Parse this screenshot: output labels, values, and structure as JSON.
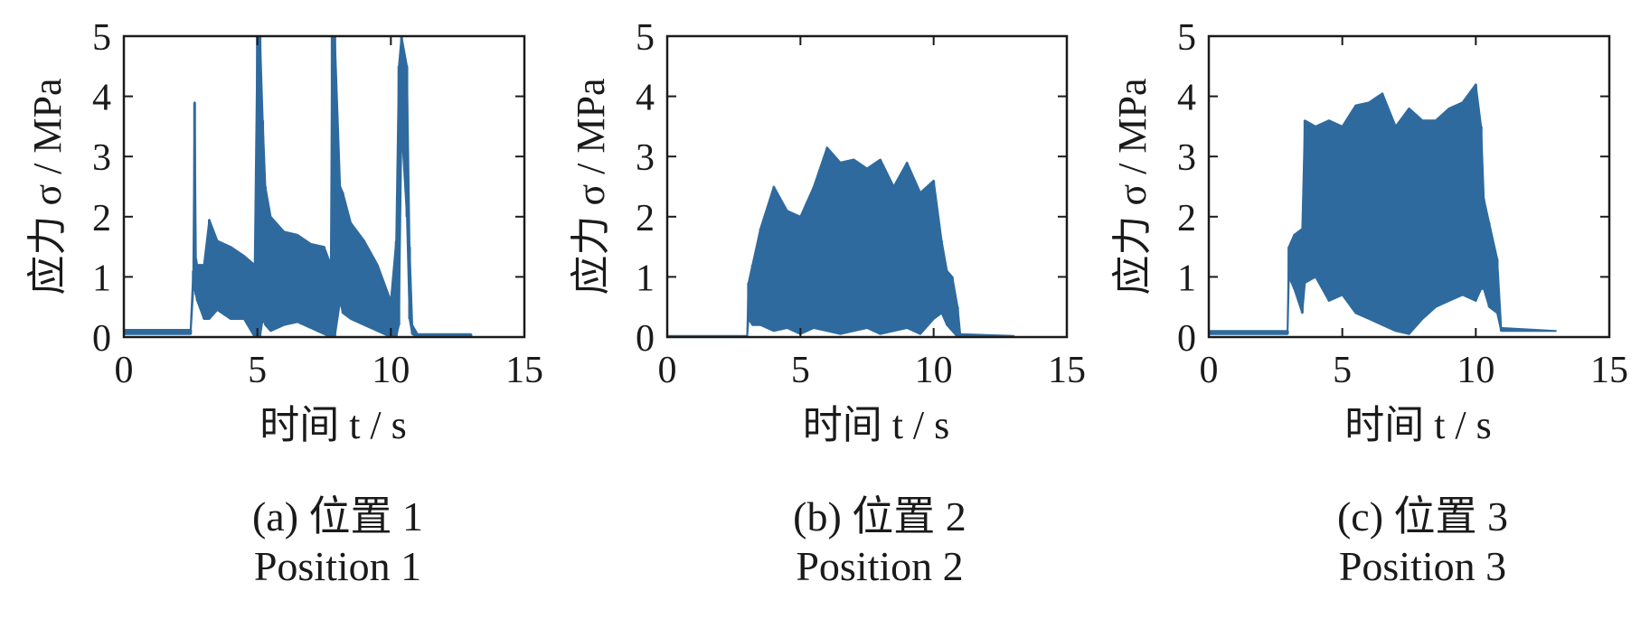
{
  "colors": {
    "series": "#2e6a9e",
    "axis": "#1a1a1a"
  },
  "chart_data": [
    {
      "type": "line",
      "caption": "(a) 位置 1",
      "caption_en": "Position 1",
      "xlabel": "时间 t / s",
      "ylabel": "应力 σ / MPa",
      "xlim": [
        0,
        15
      ],
      "ylim": [
        0,
        5
      ],
      "xticks": [
        "0",
        "5",
        "10",
        "15"
      ],
      "yticks": [
        "0",
        "1",
        "2",
        "3",
        "4",
        "5"
      ],
      "grid": false,
      "series": [
        {
          "x": [
            0,
            2.5,
            2.6,
            2.65,
            2.7,
            2.75,
            3.0,
            3.2,
            3.5,
            4.0,
            4.5,
            4.9,
            5.0,
            5.1,
            5.2,
            5.3,
            5.5,
            6.0,
            6.5,
            7.0,
            7.5,
            7.75,
            7.8,
            7.9,
            8.1,
            8.2,
            8.5,
            9.0,
            9.5,
            10.0,
            10.2,
            10.3,
            10.4,
            10.6,
            10.7,
            10.8,
            11.0,
            13.0
          ],
          "low": [
            0.05,
            0.05,
            0.8,
            0.8,
            0.7,
            0.6,
            0.3,
            0.3,
            0.45,
            0.3,
            0.3,
            0.0,
            0.0,
            0.0,
            0.3,
            0.2,
            0.1,
            0.2,
            0.25,
            0.15,
            0.05,
            0.0,
            0.0,
            0.0,
            0.6,
            0.4,
            0.3,
            0.2,
            0.1,
            0.0,
            0.0,
            0.2,
            3.5,
            2.0,
            0.3,
            0.05,
            0.0,
            0.0
          ],
          "high": [
            0.12,
            0.12,
            1.1,
            3.9,
            1.3,
            1.2,
            1.2,
            1.95,
            1.6,
            1.5,
            1.35,
            1.2,
            5.0,
            5.0,
            3.6,
            2.5,
            2.0,
            1.75,
            1.7,
            1.55,
            1.5,
            1.2,
            5.0,
            5.0,
            2.5,
            2.4,
            1.9,
            1.6,
            1.2,
            0.6,
            1.6,
            4.5,
            5.0,
            4.5,
            1.5,
            0.2,
            0.05,
            0.05
          ]
        }
      ]
    },
    {
      "type": "line",
      "caption": "(b) 位置 2",
      "caption_en": "Position 2",
      "xlabel": "时间 t / s",
      "ylabel": "应力 σ / MPa",
      "xlim": [
        0,
        15
      ],
      "ylim": [
        0,
        5
      ],
      "xticks": [
        "0",
        "5",
        "10",
        "15"
      ],
      "yticks": [
        "0",
        "1",
        "2",
        "3",
        "4",
        "5"
      ],
      "grid": false,
      "series": [
        {
          "x": [
            0,
            3.0,
            3.05,
            3.2,
            3.5,
            4.0,
            4.5,
            5.0,
            5.5,
            6.0,
            6.5,
            7.0,
            7.5,
            8.0,
            8.5,
            9.0,
            9.5,
            10.0,
            10.3,
            10.5,
            10.7,
            10.9,
            11.0,
            13.0
          ],
          "low": [
            0.0,
            0.0,
            0.3,
            0.2,
            0.2,
            0.1,
            0.15,
            0.05,
            0.15,
            0.1,
            0.05,
            0.1,
            0.15,
            0.05,
            0.1,
            0.15,
            0.05,
            0.3,
            0.4,
            0.2,
            0.1,
            0.0,
            0.0,
            0.0
          ],
          "high": [
            0.02,
            0.02,
            0.9,
            1.2,
            1.8,
            2.5,
            2.1,
            2.0,
            2.5,
            3.15,
            2.9,
            2.95,
            2.8,
            2.95,
            2.5,
            2.9,
            2.4,
            2.6,
            1.6,
            1.1,
            1.0,
            0.5,
            0.05,
            0.02
          ]
        }
      ]
    },
    {
      "type": "line",
      "caption": "(c) 位置 3",
      "caption_en": "Position 3",
      "xlabel": "时间 t / s",
      "ylabel": "应力 σ / MPa",
      "xlim": [
        0,
        15
      ],
      "ylim": [
        0,
        5
      ],
      "xticks": [
        "0",
        "5",
        "10",
        "15"
      ],
      "yticks": [
        "0",
        "1",
        "2",
        "3",
        "4",
        "5"
      ],
      "grid": false,
      "series": [
        {
          "x": [
            0,
            2.95,
            3.0,
            3.2,
            3.5,
            3.6,
            4.0,
            4.5,
            5.0,
            5.5,
            6.0,
            6.5,
            7.0,
            7.5,
            8.0,
            8.5,
            9.0,
            9.5,
            10.0,
            10.2,
            10.3,
            10.5,
            10.8,
            10.95,
            11.0,
            13.0
          ],
          "low": [
            0.05,
            0.05,
            1.0,
            0.8,
            0.4,
            0.9,
            1.0,
            0.6,
            0.7,
            0.4,
            0.3,
            0.2,
            0.1,
            0.05,
            0.3,
            0.5,
            0.6,
            0.7,
            0.6,
            0.8,
            0.8,
            0.5,
            0.4,
            0.1,
            0.1,
            0.1
          ],
          "high": [
            0.1,
            0.1,
            1.5,
            1.7,
            1.8,
            3.6,
            3.5,
            3.6,
            3.5,
            3.85,
            3.9,
            4.05,
            3.5,
            3.8,
            3.6,
            3.6,
            3.8,
            3.9,
            4.2,
            3.5,
            2.3,
            1.9,
            1.3,
            0.15,
            0.15,
            0.1
          ]
        }
      ]
    }
  ]
}
